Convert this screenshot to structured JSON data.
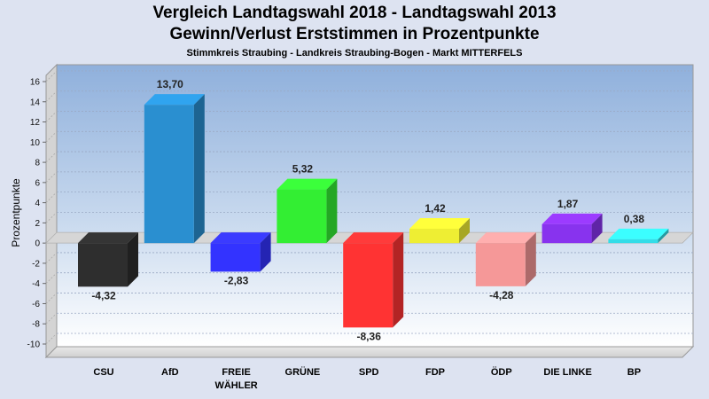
{
  "chart_data": {
    "type": "bar",
    "title": "Vergleich Landtagswahl 2018 - Landtagswahl 2013",
    "subtitle": "Gewinn/Verlust Erststimmen in Prozentpunkte",
    "subsubtitle": "Stimmkreis Straubing - Landkreis Straubing-Bogen - Markt MITTERFELS",
    "ylabel": "Prozentpunkte",
    "ylim": [
      -10,
      16
    ],
    "yticks": [
      16,
      14,
      12,
      10,
      8,
      6,
      4,
      2,
      0,
      -2,
      -4,
      -6,
      -8,
      -10
    ],
    "grid": true,
    "categories": [
      {
        "lines": [
          "CSU"
        ]
      },
      {
        "lines": [
          "AfD"
        ]
      },
      {
        "lines": [
          "FREIE",
          "WÄHLER"
        ]
      },
      {
        "lines": [
          "GRÜNE"
        ]
      },
      {
        "lines": [
          "SPD"
        ]
      },
      {
        "lines": [
          "FDP"
        ]
      },
      {
        "lines": [
          "ÖDP"
        ]
      },
      {
        "lines": [
          "DIE LINKE"
        ]
      },
      {
        "lines": [
          "BP"
        ]
      }
    ],
    "values": [
      -4.32,
      13.7,
      -2.83,
      5.32,
      -8.36,
      1.42,
      -4.28,
      1.87,
      0.38
    ],
    "value_labels": [
      "-4,32",
      "13,70",
      "-2,83",
      "5,32",
      "-8,36",
      "1,42",
      "-4,28",
      "1,87",
      "0,38"
    ],
    "colors": [
      "#2e2e2e",
      "#2a8fd0",
      "#3333ff",
      "#33ee33",
      "#ff3333",
      "#eeee33",
      "#f59898",
      "#8833ee",
      "#33dde8"
    ]
  }
}
